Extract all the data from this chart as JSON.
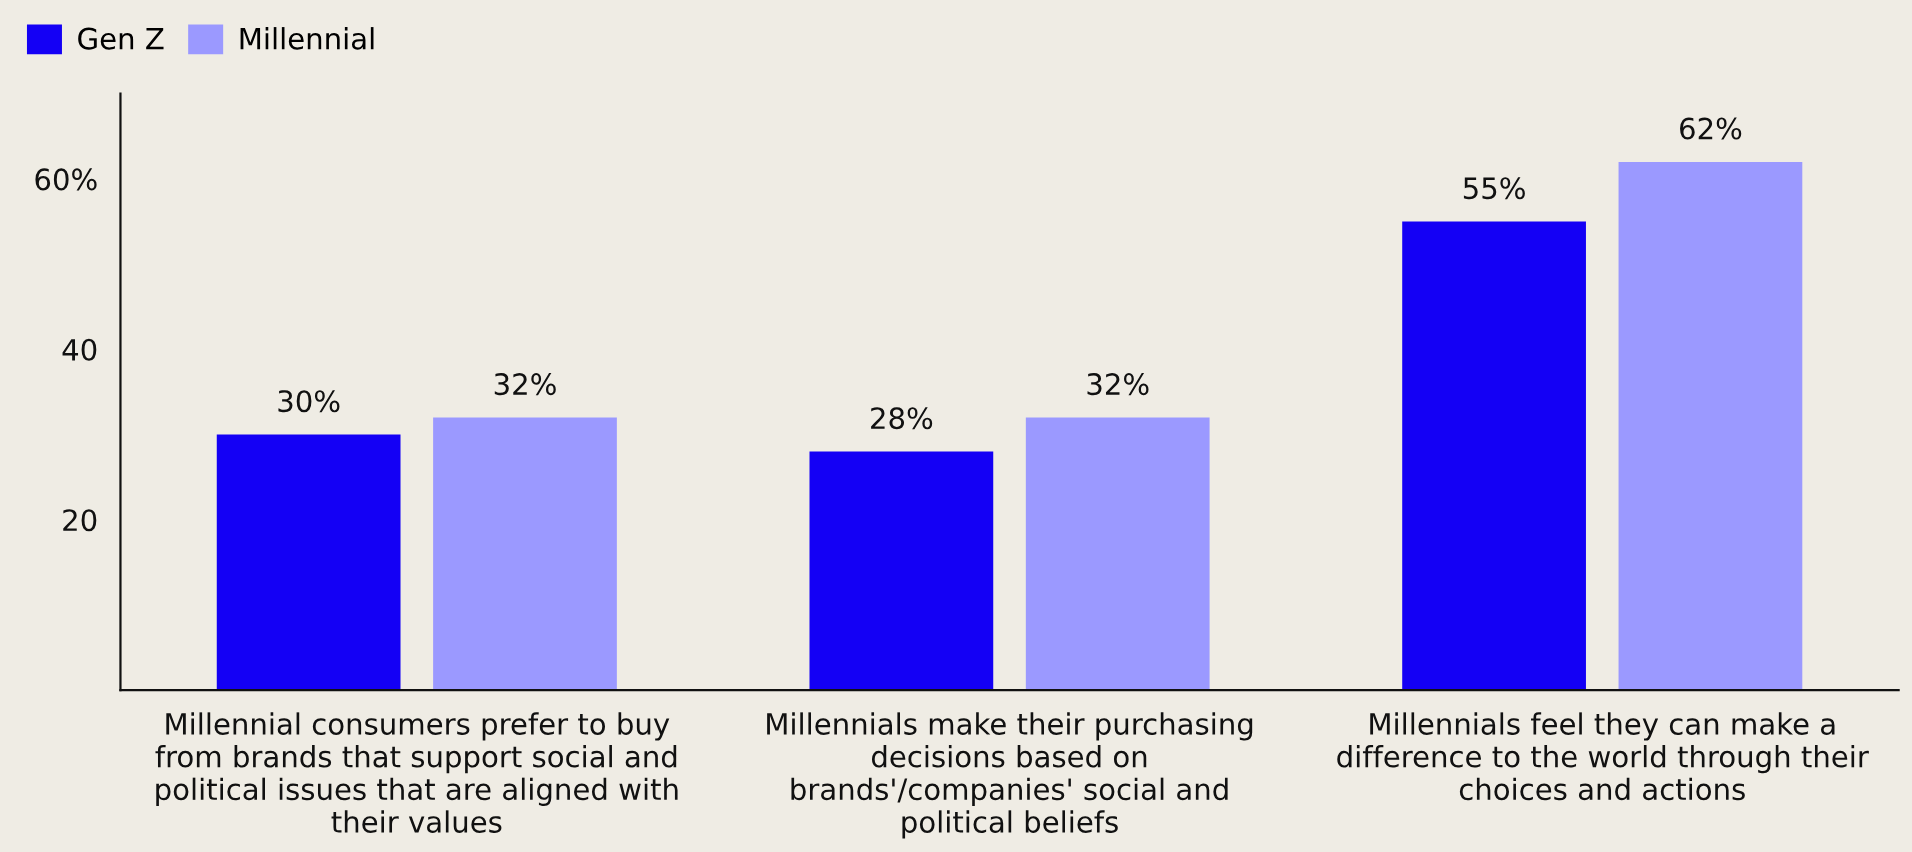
{
  "chart_data": {
    "type": "bar",
    "categories": [
      "Millennial consumers prefer to buy\nfrom brands that support social and\npolitical issues that are aligned with\ntheir values",
      "Millennials make their purchasing\ndecisions based on\nbrands'/companies' social and\npolitical beliefs",
      "Millennials feel they can make a\ndifference to the world through their\nchoices and actions"
    ],
    "series": [
      {
        "name": "Gen Z",
        "color": "#1400f5",
        "values": [
          30,
          28,
          55
        ],
        "value_labels": [
          "30%",
          "28%",
          "55%"
        ]
      },
      {
        "name": "Millennial",
        "color": "#9b99ff",
        "values": [
          32,
          32,
          62
        ],
        "value_labels": [
          "32%",
          "32%",
          "62%"
        ]
      }
    ],
    "yticks": [
      {
        "value": 20,
        "label": "20"
      },
      {
        "value": 40,
        "label": "40"
      },
      {
        "value": 60,
        "label": "60%"
      }
    ],
    "ylim": [
      0,
      70
    ],
    "grid": false,
    "legend": "top left"
  }
}
